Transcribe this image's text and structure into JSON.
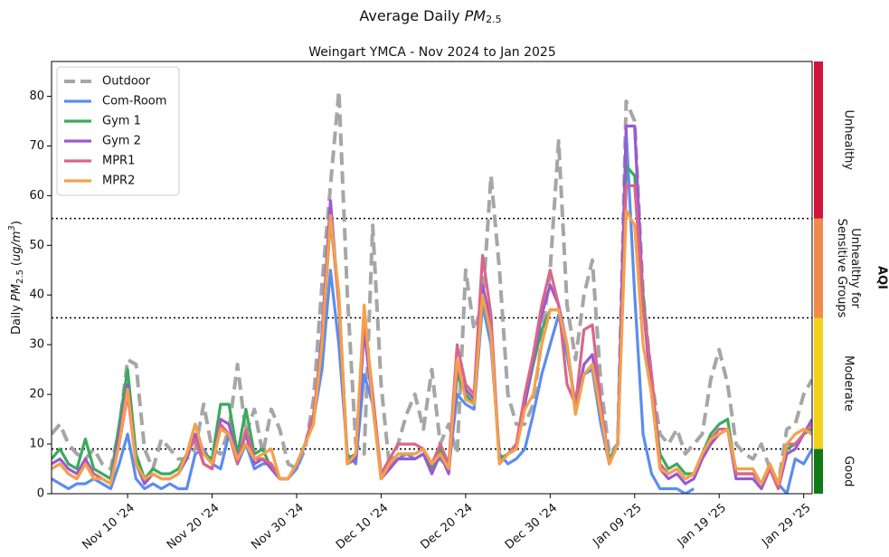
{
  "chart_data": {
    "type": "line",
    "title": {
      "text": "Average Daily",
      "symbol": "PM",
      "subscript": "2.5"
    },
    "subtitle": "Weingart YMCA - Nov 2024 to Jan 2025",
    "ylabel": {
      "prefix": "Daily",
      "symbol": "PM",
      "subscript": "2.5",
      "unit_open": "(",
      "unit": "ug/m",
      "unit_power": "3",
      "unit_close": ")"
    },
    "x": [
      "2024-11-01",
      "2024-11-02",
      "2024-11-03",
      "2024-11-04",
      "2024-11-05",
      "2024-11-06",
      "2024-11-07",
      "2024-11-08",
      "2024-11-09",
      "2024-11-10",
      "2024-11-11",
      "2024-11-12",
      "2024-11-13",
      "2024-11-14",
      "2024-11-15",
      "2024-11-16",
      "2024-11-17",
      "2024-11-18",
      "2024-11-19",
      "2024-11-20",
      "2024-11-21",
      "2024-11-22",
      "2024-11-23",
      "2024-11-24",
      "2024-11-25",
      "2024-11-26",
      "2024-11-27",
      "2024-11-28",
      "2024-11-29",
      "2024-11-30",
      "2024-12-01",
      "2024-12-02",
      "2024-12-03",
      "2024-12-04",
      "2024-12-05",
      "2024-12-06",
      "2024-12-07",
      "2024-12-08",
      "2024-12-09",
      "2024-12-10",
      "2024-12-11",
      "2024-12-12",
      "2024-12-13",
      "2024-12-14",
      "2024-12-15",
      "2024-12-16",
      "2024-12-17",
      "2024-12-18",
      "2024-12-19",
      "2024-12-20",
      "2024-12-21",
      "2024-12-22",
      "2024-12-23",
      "2024-12-24",
      "2024-12-25",
      "2024-12-26",
      "2024-12-27",
      "2024-12-28",
      "2024-12-29",
      "2024-12-30",
      "2024-12-31",
      "2025-01-01",
      "2025-01-02",
      "2025-01-03",
      "2025-01-04",
      "2025-01-05",
      "2025-01-06",
      "2025-01-07",
      "2025-01-08",
      "2025-01-09",
      "2025-01-10",
      "2025-01-11",
      "2025-01-12",
      "2025-01-13",
      "2025-01-14",
      "2025-01-15",
      "2025-01-16",
      "2025-01-17",
      "2025-01-18",
      "2025-01-19",
      "2025-01-20",
      "2025-01-21",
      "2025-01-22",
      "2025-01-23",
      "2025-01-24",
      "2025-01-25",
      "2025-01-26",
      "2025-01-27",
      "2025-01-28",
      "2025-01-29",
      "2025-01-30"
    ],
    "xlim": [
      "2024-11-01",
      "2025-01-30"
    ],
    "xticks": [
      {
        "value": "2024-11-10",
        "label": "Nov 10 '24"
      },
      {
        "value": "2024-11-20",
        "label": "Nov 20 '24"
      },
      {
        "value": "2024-11-30",
        "label": "Nov 30 '24"
      },
      {
        "value": "2024-12-10",
        "label": "Dec 10 '24"
      },
      {
        "value": "2024-12-20",
        "label": "Dec 20 '24"
      },
      {
        "value": "2024-12-30",
        "label": "Dec 30 '24"
      },
      {
        "value": "2025-01-09",
        "label": "Jan 09 '25"
      },
      {
        "value": "2025-01-19",
        "label": "Jan 19 '25"
      },
      {
        "value": "2025-01-29",
        "label": "Jan 29 '25"
      }
    ],
    "ylim": [
      0,
      87
    ],
    "yticks": [
      0,
      10,
      20,
      30,
      40,
      50,
      60,
      70,
      80
    ],
    "legend": "upper left",
    "series": [
      {
        "name": "Outdoor",
        "color": "#a6a6a6",
        "dashed": true,
        "values": [
          12,
          14,
          10,
          8,
          7,
          9,
          6,
          5,
          13,
          27,
          26,
          9,
          5,
          11,
          9,
          7,
          7,
          9,
          18,
          9,
          8,
          13,
          26,
          12,
          17,
          8,
          17,
          13,
          6,
          5,
          9,
          19,
          42,
          62,
          81,
          40,
          10,
          8,
          54,
          22,
          5,
          10,
          16,
          20,
          13,
          25,
          10,
          14,
          8,
          45,
          33,
          38,
          64,
          45,
          20,
          14,
          14,
          18,
          31,
          45,
          71,
          38,
          27,
          40,
          47,
          22,
          8,
          10,
          79,
          75,
          40,
          23,
          12,
          10,
          13,
          8,
          10,
          12,
          23,
          29,
          22,
          10,
          8,
          7,
          10,
          5,
          2,
          13,
          14,
          20,
          23
        ]
      },
      {
        "name": "Com-Room",
        "color": "#5b8def",
        "dashed": false,
        "values": [
          3,
          2,
          1,
          2,
          2,
          3,
          2,
          1,
          6,
          12,
          3,
          1,
          2,
          1,
          2,
          1,
          1,
          8,
          9,
          6,
          5,
          12,
          6,
          10,
          5,
          6,
          6,
          3,
          3,
          5,
          10,
          15,
          25,
          45,
          30,
          8,
          6,
          24,
          18,
          3,
          5,
          7,
          8,
          7,
          8,
          6,
          7,
          5,
          20,
          18,
          17,
          38,
          30,
          8,
          6,
          7,
          9,
          16,
          24,
          30,
          36,
          28,
          18,
          24,
          25,
          14,
          6,
          10,
          73,
          40,
          12,
          4,
          1,
          1,
          1,
          0,
          1,
          null,
          null,
          null,
          null,
          null,
          null,
          null,
          null,
          null,
          2,
          0,
          7,
          6,
          9
        ]
      },
      {
        "name": "Gym 1",
        "color": "#3aaa5c",
        "dashed": false,
        "values": [
          7,
          9,
          6,
          5,
          11,
          5,
          4,
          3,
          14,
          25,
          8,
          3,
          5,
          4,
          4,
          5,
          8,
          14,
          8,
          7,
          18,
          18,
          8,
          17,
          8,
          9,
          5,
          3,
          3,
          6,
          10,
          15,
          30,
          55,
          40,
          7,
          8,
          35,
          20,
          3,
          6,
          8,
          8,
          8,
          9,
          5,
          9,
          5,
          24,
          20,
          18,
          40,
          33,
          7,
          8,
          9,
          18,
          26,
          33,
          37,
          37,
          30,
          16,
          24,
          26,
          16,
          7,
          10,
          66,
          64,
          40,
          22,
          8,
          5,
          6,
          4,
          4,
          8,
          12,
          14,
          15,
          4,
          4,
          4,
          2,
          6,
          2,
          9,
          10,
          12,
          13
        ]
      },
      {
        "name": "Gym 2",
        "color": "#9b59d0",
        "dashed": false,
        "values": [
          6,
          7,
          5,
          4,
          7,
          4,
          3,
          2,
          12,
          22,
          6,
          2,
          4,
          3,
          3,
          4,
          7,
          12,
          6,
          5,
          15,
          14,
          7,
          12,
          6,
          7,
          5,
          3,
          3,
          6,
          10,
          15,
          32,
          59,
          38,
          6,
          7,
          33,
          18,
          3,
          5,
          7,
          7,
          7,
          8,
          4,
          8,
          4,
          25,
          21,
          19,
          42,
          34,
          6,
          8,
          9,
          18,
          27,
          36,
          42,
          38,
          30,
          17,
          26,
          28,
          17,
          6,
          10,
          74,
          74,
          38,
          20,
          5,
          3,
          4,
          2,
          3,
          7,
          10,
          12,
          13,
          3,
          3,
          3,
          1,
          5,
          1,
          8,
          9,
          12,
          15
        ]
      },
      {
        "name": "MPR1",
        "color": "#d9668a",
        "dashed": false,
        "values": [
          5,
          6,
          4,
          3,
          6,
          4,
          3,
          2,
          10,
          20,
          6,
          3,
          4,
          3,
          3,
          4,
          8,
          11,
          6,
          5,
          14,
          12,
          6,
          13,
          7,
          7,
          6,
          3,
          3,
          6,
          10,
          16,
          30,
          56,
          38,
          6,
          8,
          36,
          20,
          4,
          7,
          10,
          10,
          10,
          9,
          6,
          10,
          6,
          30,
          22,
          20,
          48,
          36,
          6,
          8,
          10,
          20,
          28,
          38,
          45,
          38,
          22,
          18,
          33,
          34,
          18,
          6,
          10,
          62,
          62,
          38,
          24,
          6,
          4,
          5,
          3,
          4,
          8,
          11,
          13,
          13,
          4,
          4,
          4,
          2,
          5,
          1,
          10,
          10,
          12,
          14
        ]
      },
      {
        "name": "MPR2",
        "color": "#f5a04a",
        "dashed": false,
        "values": [
          5,
          6,
          4,
          3,
          6,
          3,
          3,
          2,
          10,
          21,
          6,
          3,
          4,
          3,
          3,
          4,
          8,
          14,
          8,
          6,
          13,
          12,
          7,
          10,
          7,
          8,
          9,
          3,
          3,
          6,
          10,
          14,
          30,
          56,
          40,
          6,
          8,
          38,
          18,
          3,
          6,
          8,
          8,
          8,
          9,
          6,
          8,
          5,
          27,
          19,
          18,
          40,
          32,
          6,
          8,
          9,
          17,
          20,
          30,
          37,
          37,
          30,
          16,
          24,
          26,
          16,
          6,
          10,
          57,
          54,
          30,
          20,
          5,
          4,
          5,
          3,
          4,
          8,
          11,
          12,
          13,
          5,
          5,
          5,
          2,
          6,
          2,
          10,
          12,
          13,
          12
        ]
      }
    ],
    "aqi": {
      "label": "AQI",
      "bands": [
        {
          "label_lines": [
            "Good"
          ],
          "lower": 0,
          "upper": 9,
          "color": "#0f7a16"
        },
        {
          "label_lines": [
            "Moderate"
          ],
          "lower": 9,
          "upper": 35.4,
          "color": "#f3d11a"
        },
        {
          "label_lines": [
            "Unhealthy for",
            "Sensitive Groups"
          ],
          "lower": 35.4,
          "upper": 55.4,
          "color": "#f28a4a"
        },
        {
          "label_lines": [
            "Unhealthy"
          ],
          "lower": 55.4,
          "upper": 87,
          "color": "#d0143a"
        }
      ]
    }
  }
}
